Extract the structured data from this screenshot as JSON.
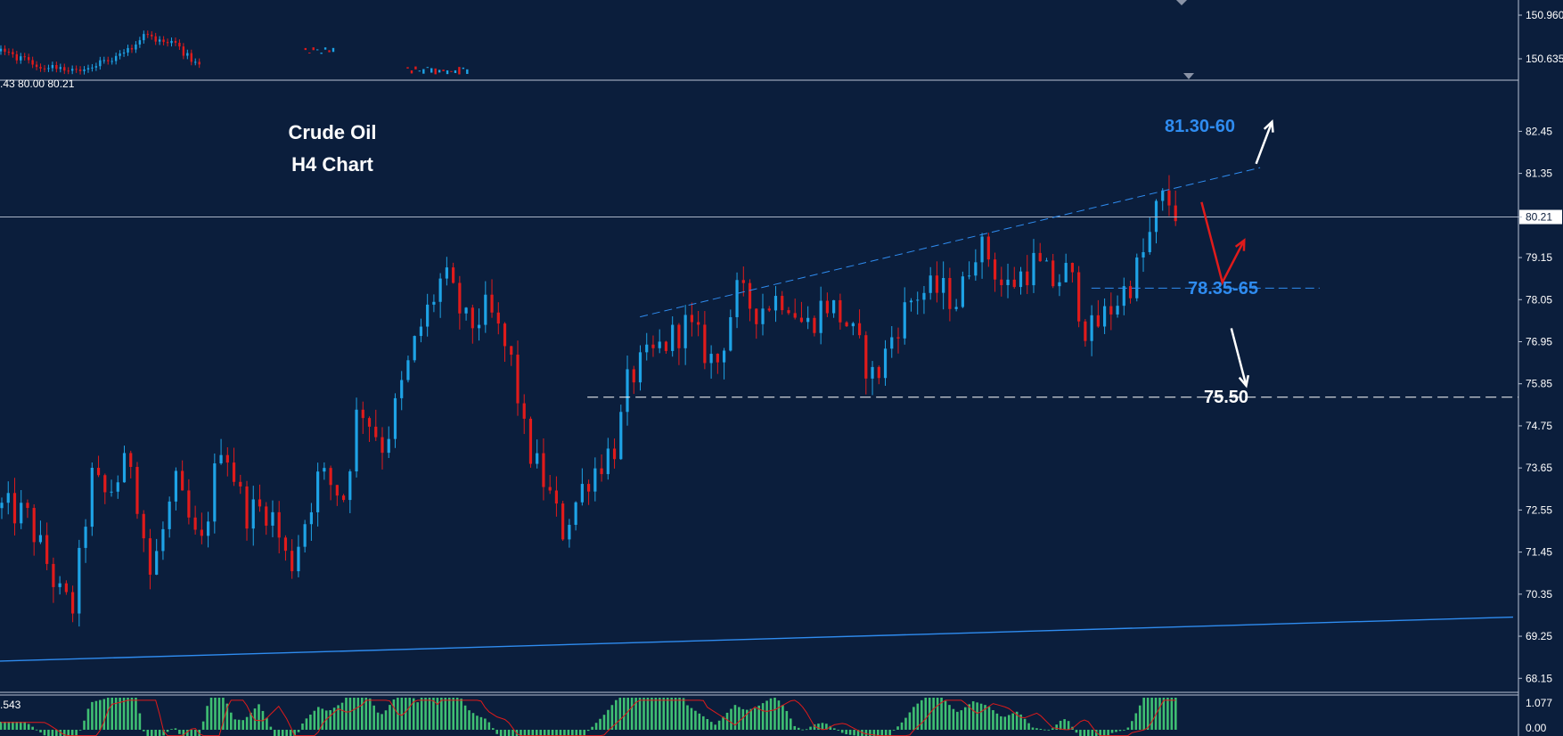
{
  "title": {
    "line1": "Crude Oil",
    "line2": "H4 Chart"
  },
  "ohlc_readout": ".43 80.00 80.21",
  "current_price": "80.21",
  "colors": {
    "background": "#0b1e3c",
    "bull": "#1ea3e6",
    "bear": "#e01b1b",
    "trend": "#2f8cf0",
    "annotation_blue": "#2f8cf0",
    "annotation_white": "#ffffff",
    "hist": "#3fbf73",
    "signal": "#e01b1b"
  },
  "chart_data": {
    "type": "candlestick",
    "instrument": "Crude Oil",
    "timeframe": "H4",
    "y_axis_labels_main": [
      "82.45",
      "81.35",
      "80.21",
      "79.15",
      "78.05",
      "76.95",
      "75.85",
      "74.75",
      "73.65",
      "72.55",
      "71.45",
      "70.35",
      "69.25",
      "68.15"
    ],
    "y_axis_labels_top": [
      "150.960",
      "150.635"
    ],
    "y_axis_labels_osc": [
      "1.077",
      "0.00"
    ],
    "oscillator_readout": ".543",
    "ylim": [
      67.9,
      83.6
    ],
    "x_range": [
      0,
      1525
    ],
    "price_path": [
      [
        0,
        72.6
      ],
      [
        25,
        72.4
      ],
      [
        45,
        71.2
      ],
      [
        60,
        70.2
      ],
      [
        72,
        70.0
      ],
      [
        90,
        73.4
      ],
      [
        105,
        72.9
      ],
      [
        130,
        73.9
      ],
      [
        150,
        70.8
      ],
      [
        175,
        73.2
      ],
      [
        200,
        71.4
      ],
      [
        222,
        74.5
      ],
      [
        245,
        72.5
      ],
      [
        270,
        72.6
      ],
      [
        290,
        71.0
      ],
      [
        320,
        73.5
      ],
      [
        345,
        72.9
      ],
      [
        360,
        75.4
      ],
      [
        385,
        74.2
      ],
      [
        420,
        77.2
      ],
      [
        445,
        78.7
      ],
      [
        470,
        77.3
      ],
      [
        490,
        77.8
      ],
      [
        515,
        76.3
      ],
      [
        528,
        74.3
      ],
      [
        548,
        73.2
      ],
      [
        565,
        72.0
      ],
      [
        590,
        73.4
      ],
      [
        620,
        74.3
      ],
      [
        632,
        76.0
      ],
      [
        660,
        76.7
      ],
      [
        690,
        77.4
      ],
      [
        720,
        76.3
      ],
      [
        740,
        78.2
      ],
      [
        760,
        77.8
      ],
      [
        790,
        78.2
      ],
      [
        810,
        77.3
      ],
      [
        830,
        78.0
      ],
      [
        850,
        77.5
      ],
      [
        880,
        75.9
      ],
      [
        900,
        77.3
      ],
      [
        920,
        78.2
      ],
      [
        945,
        78.3
      ],
      [
        965,
        78.0
      ],
      [
        980,
        79.5
      ],
      [
        995,
        79.2
      ],
      [
        1010,
        78.3
      ],
      [
        1040,
        79.0
      ],
      [
        1060,
        78.5
      ],
      [
        1075,
        78.8
      ],
      [
        1095,
        77.1
      ],
      [
        1120,
        77.9
      ],
      [
        1140,
        78.6
      ],
      [
        1155,
        79.5
      ],
      [
        1165,
        80.5
      ],
      [
        1172,
        80.7
      ],
      [
        1180,
        80.5
      ],
      [
        1186,
        80.21
      ]
    ],
    "annotations": {
      "resistance_zone": "81.30-60",
      "support_zone": "78.35-65",
      "target": "75.50"
    },
    "levels": {
      "support_zone_line": 78.35,
      "target_line": 75.5,
      "current_price": 80.21
    },
    "trendlines": [
      {
        "from": [
          645,
          77.6
        ],
        "to": [
          1270,
          81.5
        ],
        "style": "dashed"
      },
      {
        "from": [
          0,
          68.6
        ],
        "to": [
          1525,
          69.75
        ],
        "style": "solid"
      }
    ],
    "scenario_arrows": [
      {
        "color": "white",
        "from": [
          1266,
          81.6
        ],
        "to": [
          1282,
          82.7
        ]
      },
      {
        "color": "red",
        "from": [
          1211,
          80.6
        ],
        "via": [
          1232,
          78.5
        ],
        "to": [
          1254,
          79.6
        ]
      },
      {
        "color": "white",
        "from": [
          1241,
          77.3
        ],
        "to": [
          1256,
          75.8
        ]
      }
    ],
    "top_pane_path": [
      [
        0,
        0.55
      ],
      [
        40,
        0.2
      ],
      [
        80,
        0.1
      ],
      [
        120,
        0.45
      ],
      [
        145,
        0.9
      ],
      [
        175,
        0.7
      ],
      [
        200,
        0.2
      ]
    ],
    "oscillator": {
      "series": [
        "histogram",
        "signal"
      ]
    }
  }
}
